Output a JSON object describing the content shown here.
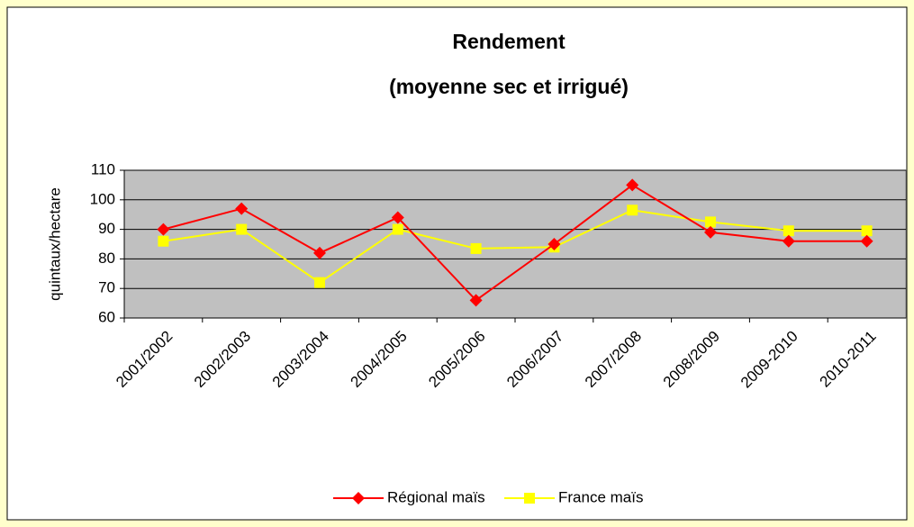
{
  "chart_data": {
    "type": "line",
    "title": "Rendement",
    "subtitle": "(moyenne sec et irrigué)",
    "y_label": "quintaux/hectare",
    "categories": [
      "2001/2002",
      "2002/2003",
      "2003/2004",
      "2004/2005",
      "2005/2006",
      "2006/2007",
      "2007/2008",
      "2008/2009",
      "2009-2010",
      "2010-2011"
    ],
    "series": [
      {
        "name": "Régional maïs",
        "color": "#ff0000",
        "marker": "diamond",
        "values": [
          90,
          97,
          82,
          94,
          66,
          85,
          105,
          89,
          86,
          86
        ]
      },
      {
        "name": "France maïs",
        "color": "#ffff00",
        "marker": "square",
        "values": [
          86,
          90,
          72,
          90,
          83.5,
          84,
          96.5,
          92.5,
          89.5,
          89.5
        ]
      }
    ],
    "ylim": [
      60,
      110
    ],
    "yticks": [
      60,
      70,
      80,
      90,
      100,
      110
    ],
    "grid": true,
    "legend": "bottom"
  }
}
